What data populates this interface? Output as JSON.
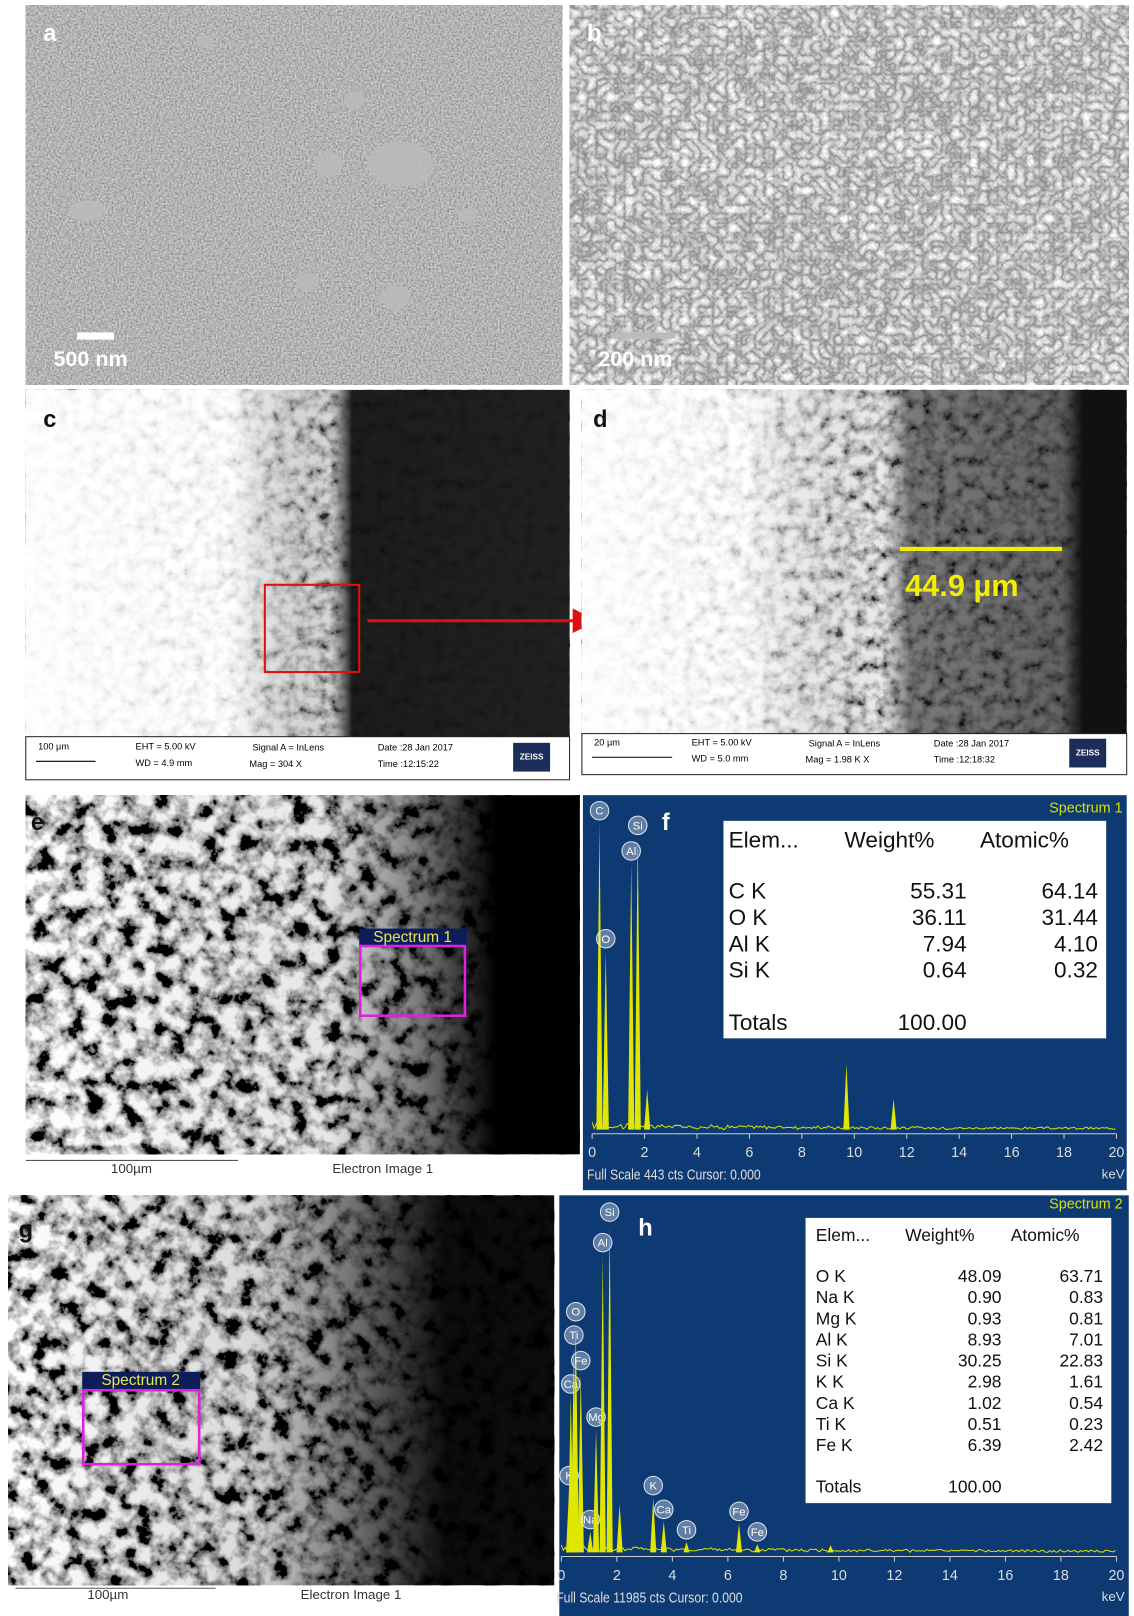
{
  "panels": {
    "a": {
      "label": "a",
      "scale_bar": "500 nm"
    },
    "b": {
      "label": "b",
      "scale_bar": "200 nm"
    },
    "c": {
      "label": "c",
      "info_bar": {
        "scale": "100 µm",
        "eht": "EHT =  5.00 kV",
        "wd": "WD =  4.9 mm",
        "signal": "Signal A = InLens",
        "mag": "Mag =   304 X",
        "date": "Date :28 Jan 2017",
        "time": "Time :12:15:22",
        "brand": "ZEISS"
      }
    },
    "d": {
      "label": "d",
      "measurement": "44.9 µm",
      "info_bar": {
        "scale": "20 µm",
        "eht": "EHT =  5.00 kV",
        "wd": "WD =  5.0 mm",
        "signal": "Signal A = InLens",
        "mag": "Mag =   1.98 K X",
        "date": "Date :28 Jan 2017",
        "time": "Time :12:18:32",
        "brand": "ZEISS"
      }
    },
    "e": {
      "label": "e",
      "region": "Spectrum 1",
      "scale": "100µm",
      "caption": "Electron Image 1"
    },
    "f": {
      "label": "f",
      "title": "Spectrum 1",
      "table": {
        "header": [
          "Elem...",
          "Weight%",
          "Atomic%"
        ],
        "rows": [
          [
            "C K",
            "55.31",
            "64.14"
          ],
          [
            "O K",
            "36.11",
            "31.44"
          ],
          [
            "Al K",
            "7.94",
            "4.10"
          ],
          [
            "Si K",
            "0.64",
            "0.32"
          ]
        ],
        "totals": [
          "Totals",
          "100.00"
        ]
      },
      "spectrum": {
        "xlim": [
          0,
          20
        ],
        "ylim": [
          0,
          443
        ],
        "xticks": [
          0,
          2,
          4,
          6,
          8,
          10,
          12,
          14,
          16,
          18,
          20
        ],
        "x_unit": "keV",
        "footer": "Full Scale 443 cts Cursor: 0.000",
        "peaks": [
          {
            "label": "C",
            "kev": 0.28,
            "cts": 419
          },
          {
            "label": "O",
            "kev": 0.52,
            "cts": 244
          },
          {
            "label": "Al",
            "kev": 1.49,
            "cts": 364
          },
          {
            "label": "Si",
            "kev": 1.74,
            "cts": 399
          },
          {
            "kev": 2.1,
            "cts": 55
          },
          {
            "kev": 9.7,
            "cts": 90
          },
          {
            "kev": 11.5,
            "cts": 42
          }
        ]
      }
    },
    "g": {
      "label": "g",
      "region": "Spectrum 2",
      "scale": "100µm",
      "caption": "Electron Image 1"
    },
    "h": {
      "label": "h",
      "title": "Spectrum 2",
      "table": {
        "header": [
          "Elem...",
          "Weight%",
          "Atomic%"
        ],
        "rows": [
          [
            "O K",
            "48.09",
            "63.71"
          ],
          [
            "Na K",
            "0.90",
            "0.83"
          ],
          [
            "Mg K",
            "0.93",
            "0.81"
          ],
          [
            "Al K",
            "8.93",
            "7.01"
          ],
          [
            "Si K",
            "30.25",
            "22.83"
          ],
          [
            "K K",
            "2.98",
            "1.61"
          ],
          [
            "Ca K",
            "1.02",
            "0.54"
          ],
          [
            "Ti K",
            "0.51",
            "0.23"
          ],
          [
            "Fe K",
            "6.39",
            "2.42"
          ]
        ],
        "totals": [
          "Totals",
          "100.00"
        ]
      },
      "spectrum": {
        "xlim": [
          0,
          20
        ],
        "ylim": [
          0,
          11985
        ],
        "xticks": [
          0,
          2,
          4,
          6,
          8,
          10,
          12,
          14,
          16,
          18,
          20
        ],
        "x_unit": "keV",
        "footer": "Full Scale 11985 cts Cursor: 0.000",
        "peaks": [
          {
            "label": "K",
            "kev": 0.28,
            "cts": 2200
          },
          {
            "label": "Ca",
            "kev": 0.34,
            "cts": 5330
          },
          {
            "label": "Ti",
            "kev": 0.45,
            "cts": 7000
          },
          {
            "label": "O",
            "kev": 0.52,
            "cts": 7800
          },
          {
            "label": "Fe",
            "kev": 0.7,
            "cts": 6130
          },
          {
            "label": "Na",
            "kev": 1.04,
            "cts": 700
          },
          {
            "label": "Mg",
            "kev": 1.25,
            "cts": 4200
          },
          {
            "label": "Al",
            "kev": 1.49,
            "cts": 10160
          },
          {
            "label": "Si",
            "kev": 1.74,
            "cts": 11200
          },
          {
            "kev": 2.1,
            "cts": 1650
          },
          {
            "label": "K",
            "kev": 3.31,
            "cts": 1860
          },
          {
            "label": "Ca",
            "kev": 3.69,
            "cts": 1050
          },
          {
            "label": "Ti",
            "kev": 4.51,
            "cts": 350
          },
          {
            "label": "Fe",
            "kev": 6.4,
            "cts": 980
          },
          {
            "label": "Fe",
            "kev": 7.06,
            "cts": 280
          },
          {
            "kev": 9.7,
            "cts": 250
          }
        ]
      }
    }
  }
}
